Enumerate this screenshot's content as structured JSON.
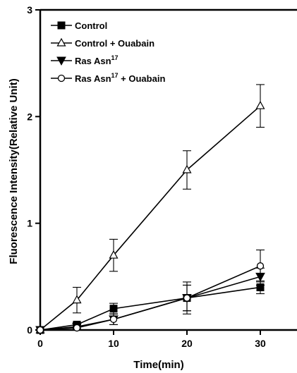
{
  "chart_data": {
    "type": "line",
    "xlabel": "Time(min)",
    "ylabel": "Fluorescence Intensity(Relative Unit)",
    "xlim": [
      0,
      35
    ],
    "ylim": [
      0,
      3
    ],
    "xticks": [
      0,
      10,
      20,
      30
    ],
    "yticks": [
      0,
      1,
      2,
      3
    ],
    "legend_position": "top-left",
    "grid": false,
    "series": [
      {
        "name": "Control",
        "marker": "filled-square",
        "x": [
          0,
          5,
          10,
          20,
          30
        ],
        "y": [
          0,
          0.05,
          0.2,
          0.3,
          0.4
        ],
        "err": [
          0,
          0.02,
          0.05,
          0.12,
          0.06
        ]
      },
      {
        "name": "Control + Ouabain",
        "marker": "open-triangle-up",
        "x": [
          0,
          5,
          10,
          20,
          30
        ],
        "y": [
          0,
          0.28,
          0.7,
          1.5,
          2.1
        ],
        "err": [
          0,
          0.12,
          0.15,
          0.18,
          0.2
        ]
      },
      {
        "name": "Ras Asn",
        "name_superscript": "17",
        "marker": "filled-triangle-down",
        "x": [
          0,
          5,
          10,
          20,
          30
        ],
        "y": [
          0,
          0.03,
          0.1,
          0.3,
          0.5
        ],
        "err": [
          0,
          0.02,
          0.05,
          0.15,
          0.08
        ]
      },
      {
        "name": "Ras Asn",
        "name_superscript": "17",
        "name_suffix": " + Ouabain",
        "marker": "open-circle",
        "x": [
          0,
          5,
          10,
          20,
          30
        ],
        "y": [
          0,
          0.02,
          0.1,
          0.3,
          0.6
        ],
        "err": [
          0,
          0.02,
          0.05,
          0.12,
          0.15
        ]
      }
    ]
  }
}
